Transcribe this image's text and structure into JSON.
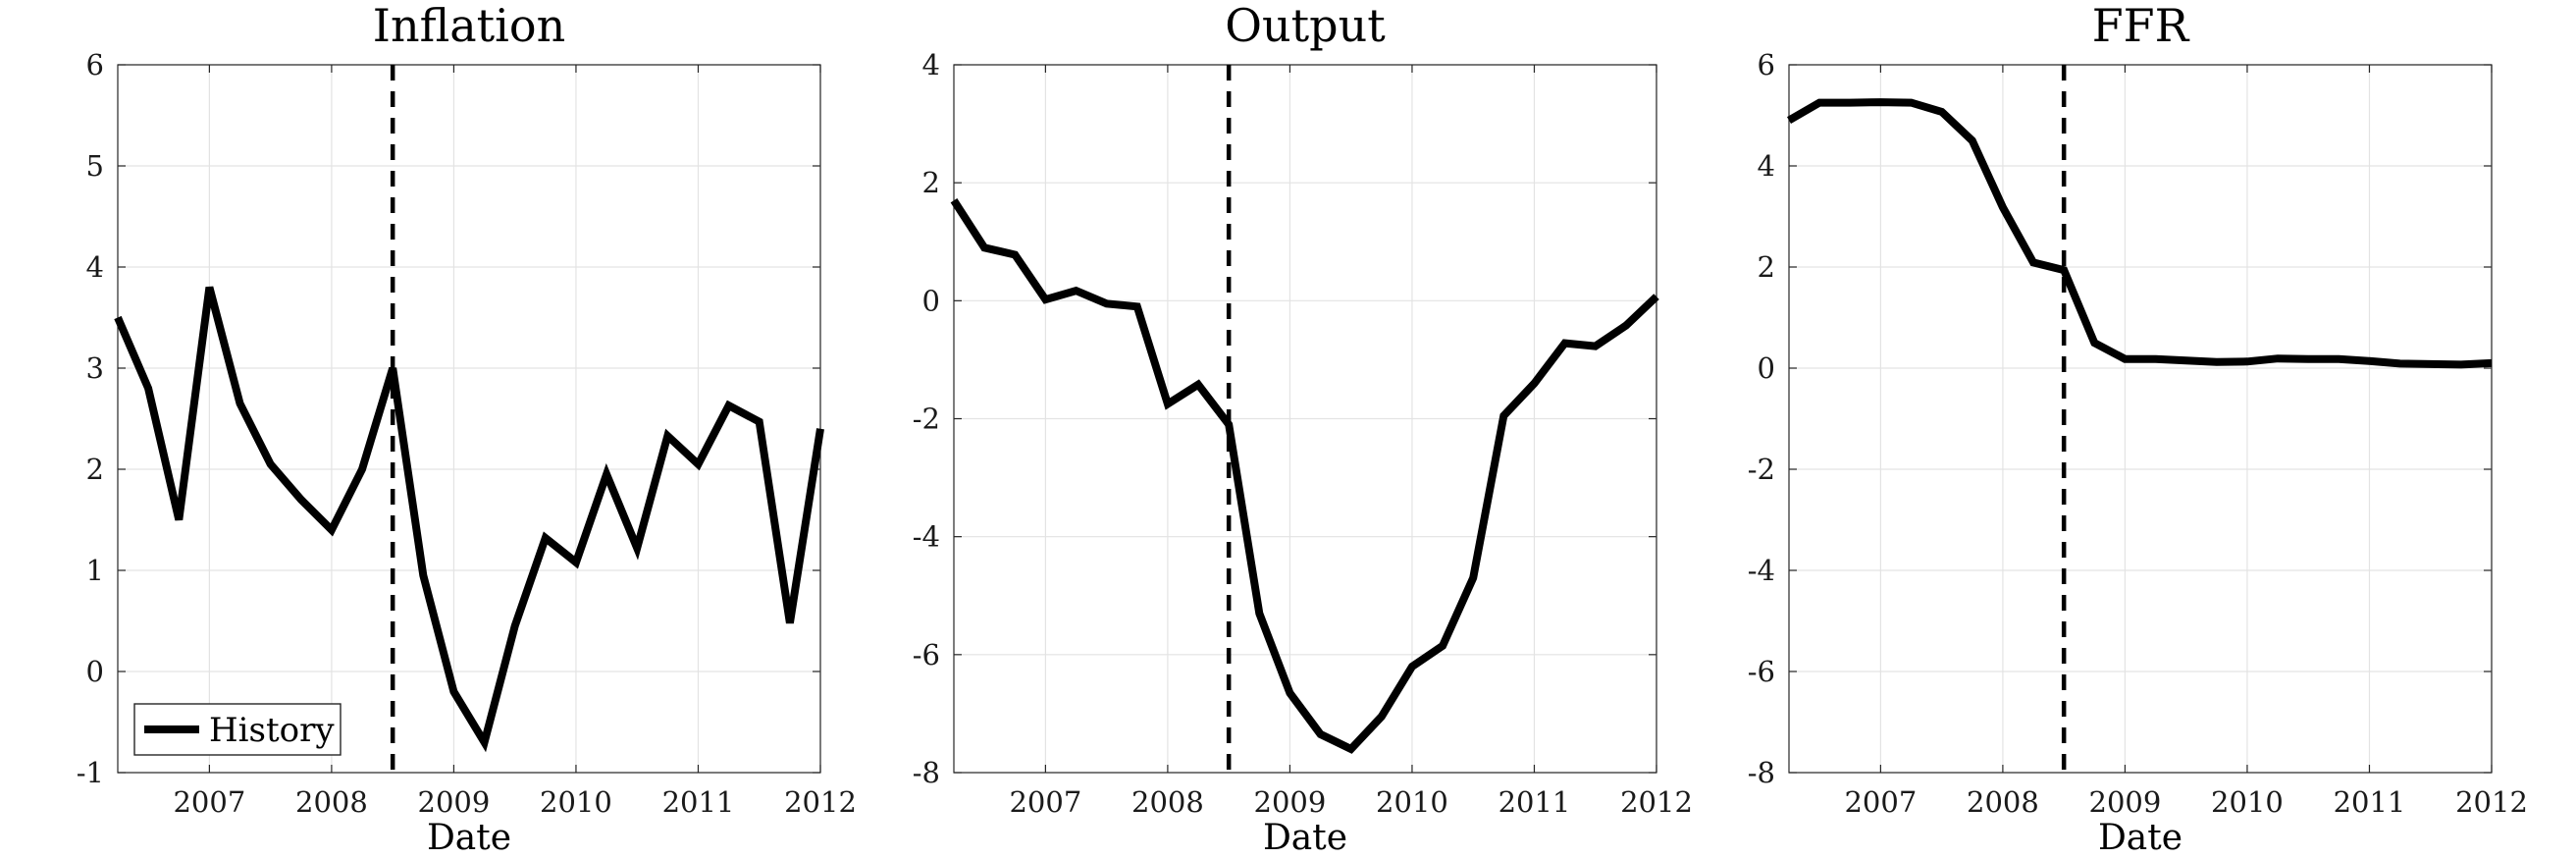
{
  "chart_data": [
    {
      "type": "line",
      "title": "Inflation",
      "xlabel": "Date",
      "ylabel": "",
      "xlim": [
        2006.25,
        2012.0
      ],
      "ylim": [
        -1,
        6
      ],
      "xticks": [
        "2007",
        "2008",
        "2009",
        "2010",
        "2011",
        "2012"
      ],
      "yticks": [
        "-1",
        "0",
        "1",
        "2",
        "3",
        "4",
        "5",
        "6"
      ],
      "grid": true,
      "vline_x": 2008.5,
      "legend": {
        "entries": [
          "History"
        ],
        "placement": "bottom-left"
      },
      "series": [
        {
          "name": "History",
          "color": "#000000",
          "x": [
            2006.25,
            2006.5,
            2006.75,
            2007.0,
            2007.25,
            2007.5,
            2007.75,
            2008.0,
            2008.25,
            2008.5,
            2008.75,
            2009.0,
            2009.25,
            2009.5,
            2009.75,
            2010.0,
            2010.25,
            2010.5,
            2010.75,
            2011.0,
            2011.25,
            2011.5,
            2011.75,
            2012.0
          ],
          "values": [
            3.5,
            2.8,
            1.5,
            3.8,
            2.65,
            2.05,
            1.7,
            1.4,
            2.0,
            3.0,
            0.95,
            -0.2,
            -0.7,
            0.45,
            1.32,
            1.08,
            1.95,
            1.22,
            2.33,
            2.05,
            2.63,
            2.47,
            0.48,
            2.4
          ]
        }
      ]
    },
    {
      "type": "line",
      "title": "Output",
      "xlabel": "Date",
      "ylabel": "",
      "xlim": [
        2006.25,
        2012.0
      ],
      "ylim": [
        -8,
        4
      ],
      "xticks": [
        "2007",
        "2008",
        "2009",
        "2010",
        "2011",
        "2012"
      ],
      "yticks": [
        "-8",
        "-6",
        "-4",
        "-2",
        "0",
        "2",
        "4"
      ],
      "grid": true,
      "vline_x": 2008.5,
      "series": [
        {
          "name": "History",
          "color": "#000000",
          "x": [
            2006.25,
            2006.5,
            2006.75,
            2007.0,
            2007.25,
            2007.5,
            2007.75,
            2008.0,
            2008.25,
            2008.5,
            2008.75,
            2009.0,
            2009.25,
            2009.5,
            2009.75,
            2010.0,
            2010.25,
            2010.5,
            2010.75,
            2011.0,
            2011.25,
            2011.5,
            2011.75,
            2012.0
          ],
          "values": [
            1.7,
            0.9,
            0.78,
            0.02,
            0.17,
            -0.05,
            -0.1,
            -1.75,
            -1.42,
            -2.1,
            -5.3,
            -6.65,
            -7.35,
            -7.6,
            -7.05,
            -6.2,
            -5.85,
            -4.7,
            -1.95,
            -1.4,
            -0.72,
            -0.77,
            -0.42,
            0.07
          ]
        }
      ]
    },
    {
      "type": "line",
      "title": "FFR",
      "xlabel": "Date",
      "ylabel": "",
      "xlim": [
        2006.25,
        2012.0
      ],
      "ylim": [
        -8,
        6
      ],
      "xticks": [
        "2007",
        "2008",
        "2009",
        "2010",
        "2011",
        "2012"
      ],
      "yticks": [
        "-8",
        "-6",
        "-4",
        "-2",
        "0",
        "2",
        "4",
        "6"
      ],
      "grid": true,
      "vline_x": 2008.5,
      "series": [
        {
          "name": "History",
          "color": "#000000",
          "x": [
            2006.25,
            2006.5,
            2006.75,
            2007.0,
            2007.25,
            2007.5,
            2007.75,
            2008.0,
            2008.25,
            2008.5,
            2008.75,
            2009.0,
            2009.25,
            2009.5,
            2009.75,
            2010.0,
            2010.25,
            2010.5,
            2010.75,
            2011.0,
            2011.25,
            2011.5,
            2011.75,
            2012.0
          ],
          "values": [
            4.9,
            5.25,
            5.25,
            5.26,
            5.25,
            5.07,
            4.5,
            3.18,
            2.09,
            1.94,
            0.5,
            0.18,
            0.18,
            0.15,
            0.12,
            0.13,
            0.19,
            0.18,
            0.18,
            0.14,
            0.09,
            0.08,
            0.07,
            0.1
          ]
        }
      ]
    }
  ]
}
